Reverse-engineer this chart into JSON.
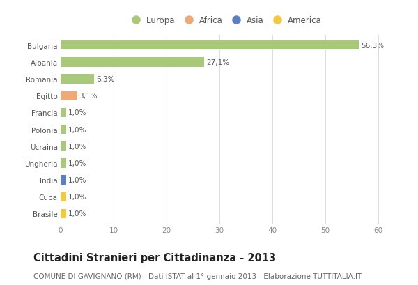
{
  "categories": [
    "Brasile",
    "Cuba",
    "India",
    "Ungheria",
    "Ucraina",
    "Polonia",
    "Francia",
    "Egitto",
    "Romania",
    "Albania",
    "Bulgaria"
  ],
  "values": [
    1.0,
    1.0,
    1.0,
    1.0,
    1.0,
    1.0,
    1.0,
    3.1,
    6.3,
    27.1,
    56.3
  ],
  "labels": [
    "1,0%",
    "1,0%",
    "1,0%",
    "1,0%",
    "1,0%",
    "1,0%",
    "1,0%",
    "3,1%",
    "6,3%",
    "27,1%",
    "56,3%"
  ],
  "colors": [
    "#f5c842",
    "#f5c842",
    "#5b7fc4",
    "#a8c97a",
    "#a8c97a",
    "#a8c97a",
    "#a8c97a",
    "#f0a875",
    "#a8c97a",
    "#a8c97a",
    "#a8c97a"
  ],
  "legend_labels": [
    "Europa",
    "Africa",
    "Asia",
    "America"
  ],
  "legend_colors": [
    "#a8c97a",
    "#f0a875",
    "#5b7fc4",
    "#f5c842"
  ],
  "title": "Cittadini Stranieri per Cittadinanza - 2013",
  "subtitle": "COMUNE DI GAVIGNANO (RM) - Dati ISTAT al 1° gennaio 2013 - Elaborazione TUTTITALIA.IT",
  "xlim": [
    0,
    62
  ],
  "xticks": [
    0,
    10,
    20,
    30,
    40,
    50,
    60
  ],
  "bg_color": "#ffffff",
  "grid_color": "#dddddd",
  "bar_height": 0.55,
  "title_fontsize": 10.5,
  "subtitle_fontsize": 7.5,
  "label_fontsize": 7.5,
  "tick_fontsize": 7.5,
  "legend_fontsize": 8.5
}
